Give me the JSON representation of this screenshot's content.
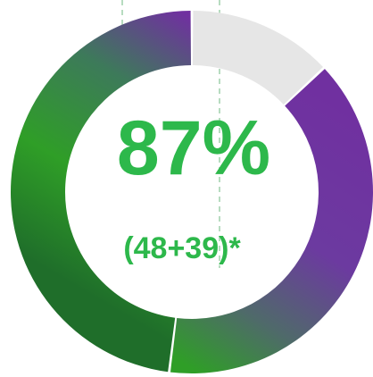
{
  "chart_data": {
    "type": "pie",
    "style": "donut",
    "center_value_label": "87%",
    "center_sub_label": "(48+39)*",
    "slices": [
      {
        "label": "48",
        "value": 48,
        "color_start": "#2f9e27",
        "color_end": "#7030a0"
      },
      {
        "label": "39",
        "value": 39,
        "color_start": "#7030a0",
        "color_end": "#2f9e27"
      },
      {
        "label": "",
        "value": 13,
        "color": "#e6e6e6"
      }
    ],
    "colors": {
      "accent_text": "#2db84b",
      "green": "#2f9e27",
      "purple": "#7030a0",
      "remainder": "#e6e6e6",
      "guide_line": "#b7dcc0"
    }
  }
}
